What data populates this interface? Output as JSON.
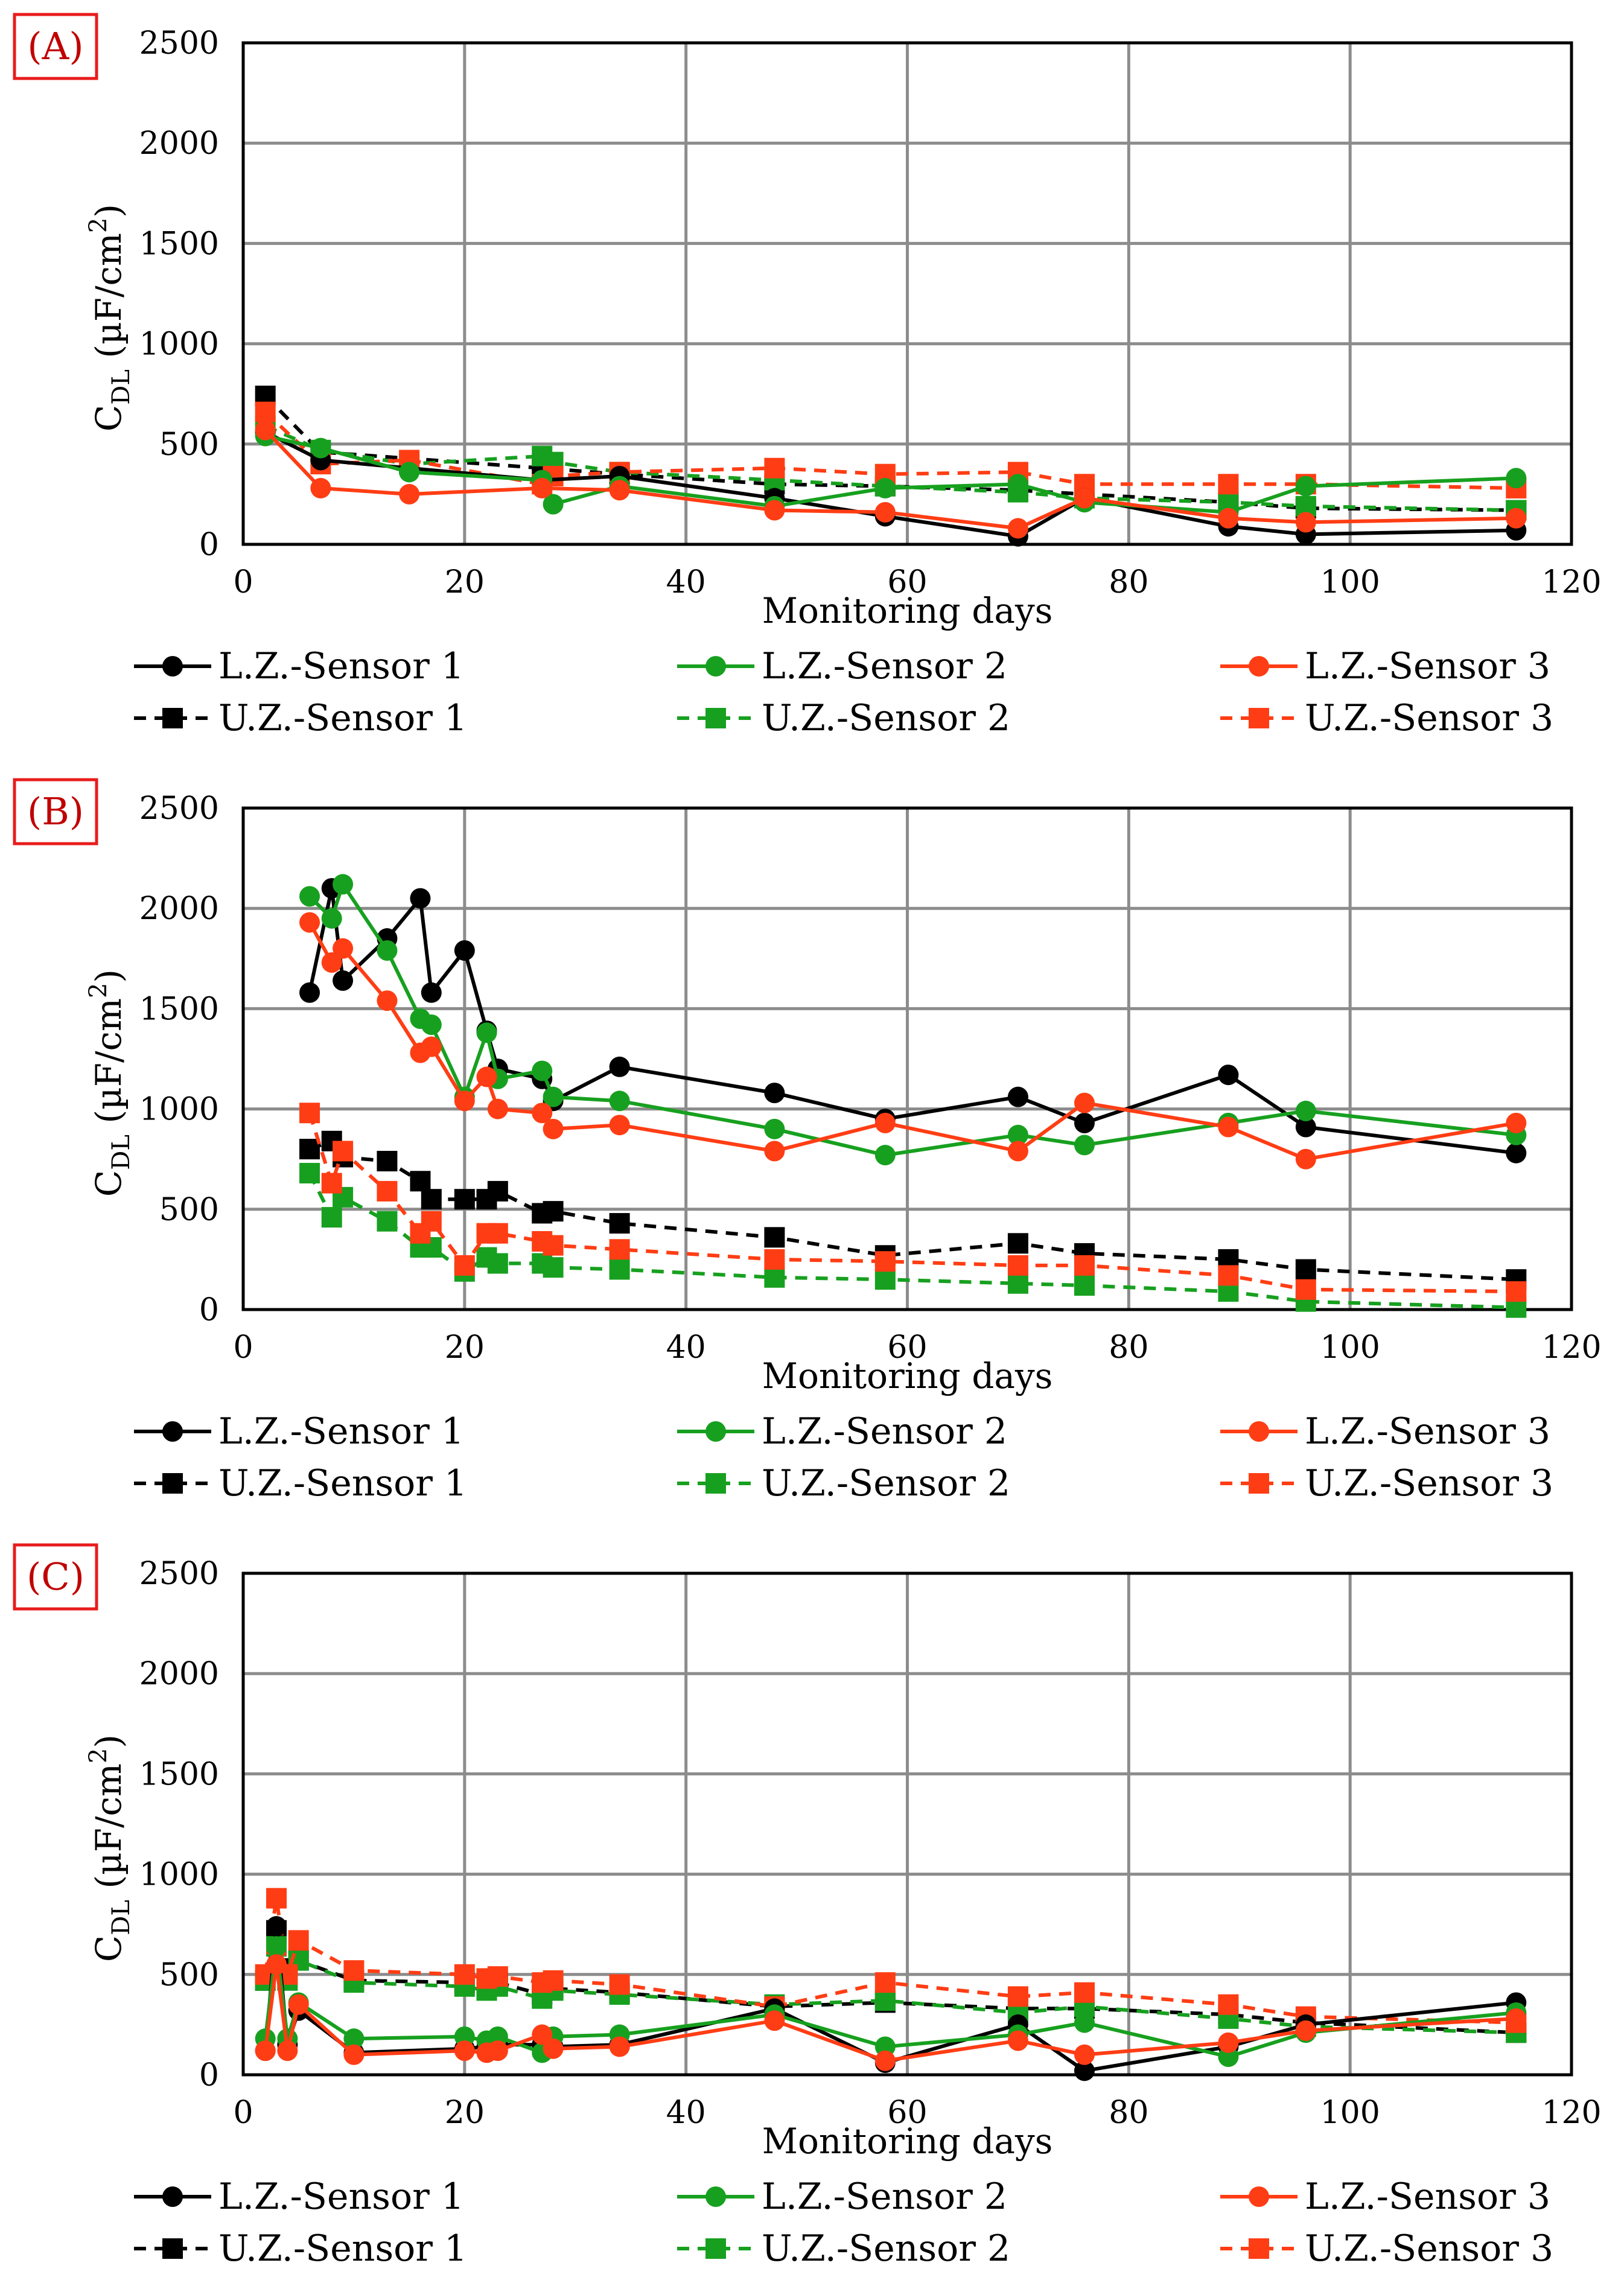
{
  "chart_data": [
    {
      "type": "line",
      "panel_label": "(A)",
      "xlabel": "Monitoring days",
      "ylabel": "CDL (µF/cm2)",
      "ylabel_parts": {
        "main": "C",
        "sub": "DL",
        "unit": " (µF/cm",
        "sup": "2",
        "close": ")"
      },
      "xlim": [
        0,
        120
      ],
      "ylim": [
        0,
        2500
      ],
      "xticks": [
        0,
        20,
        40,
        60,
        80,
        100,
        120
      ],
      "yticks": [
        0,
        500,
        1000,
        1500,
        2000,
        2500
      ],
      "grid": true,
      "legend_position": "bottom",
      "series": [
        {
          "name": "L.Z.-Sensor 1",
          "color": "#000000",
          "style": "solid",
          "marker": "circle",
          "x": [
            2,
            7,
            27,
            34,
            48,
            58,
            70,
            76,
            89,
            96,
            115
          ],
          "y": [
            560,
            420,
            320,
            340,
            230,
            140,
            40,
            230,
            90,
            50,
            70
          ]
        },
        {
          "name": "L.Z.-Sensor 2",
          "color": "#17a01f",
          "style": "solid",
          "marker": "circle",
          "x": [
            2,
            7,
            15,
            27,
            28,
            34,
            48,
            58,
            70,
            76,
            89,
            96,
            115
          ],
          "y": [
            540,
            480,
            360,
            320,
            200,
            290,
            190,
            280,
            300,
            210,
            160,
            290,
            330
          ]
        },
        {
          "name": "L.Z.-Sensor 3",
          "color": "#ff3d14",
          "style": "solid",
          "marker": "circle",
          "x": [
            2,
            7,
            15,
            27,
            34,
            48,
            58,
            70,
            76,
            89,
            96,
            115
          ],
          "y": [
            570,
            280,
            250,
            280,
            270,
            170,
            160,
            80,
            230,
            130,
            110,
            130
          ]
        },
        {
          "name": "U.Z.-Sensor 1",
          "color": "#000000",
          "style": "dashed",
          "marker": "square",
          "x": [
            2,
            7,
            27,
            34,
            48,
            58,
            70,
            76,
            89,
            96,
            115
          ],
          "y": [
            740,
            460,
            380,
            350,
            300,
            290,
            270,
            250,
            210,
            180,
            170
          ]
        },
        {
          "name": "U.Z.-Sensor 2",
          "color": "#17a01f",
          "style": "dashed",
          "marker": "square",
          "x": [
            2,
            7,
            15,
            27,
            28,
            34,
            48,
            58,
            70,
            76,
            89,
            96,
            115
          ],
          "y": [
            590,
            470,
            400,
            440,
            410,
            360,
            320,
            290,
            260,
            230,
            210,
            190,
            170
          ]
        },
        {
          "name": "U.Z.-Sensor 3",
          "color": "#ff3d14",
          "style": "dashed",
          "marker": "square",
          "x": [
            2,
            7,
            15,
            27,
            28,
            34,
            48,
            58,
            70,
            76,
            89,
            96,
            115
          ],
          "y": [
            660,
            400,
            420,
            300,
            340,
            360,
            380,
            350,
            360,
            300,
            300,
            300,
            280
          ]
        }
      ]
    },
    {
      "type": "line",
      "panel_label": "(B)",
      "xlabel": "Monitoring days",
      "ylabel": "CDL (µF/cm2)",
      "ylabel_parts": {
        "main": "C",
        "sub": "DL",
        "unit": " (µF/cm",
        "sup": "2",
        "close": ")"
      },
      "xlim": [
        0,
        120
      ],
      "ylim": [
        0,
        2500
      ],
      "xticks": [
        0,
        20,
        40,
        60,
        80,
        100,
        120
      ],
      "yticks": [
        0,
        500,
        1000,
        1500,
        2000,
        2500
      ],
      "grid": true,
      "legend_position": "bottom",
      "series": [
        {
          "name": "L.Z.-Sensor 1",
          "color": "#000000",
          "style": "solid",
          "marker": "circle",
          "x": [
            6,
            8,
            9,
            13,
            16,
            17,
            20,
            22,
            23,
            27,
            28,
            34,
            48,
            58,
            70,
            76,
            89,
            96,
            115
          ],
          "y": [
            1580,
            2100,
            1640,
            1850,
            2050,
            1580,
            1790,
            1390,
            1200,
            1150,
            1040,
            1210,
            1080,
            950,
            1060,
            930,
            1170,
            910,
            780
          ]
        },
        {
          "name": "L.Z.-Sensor 2",
          "color": "#17a01f",
          "style": "solid",
          "marker": "circle",
          "x": [
            6,
            8,
            9,
            13,
            16,
            17,
            20,
            22,
            23,
            27,
            28,
            34,
            48,
            58,
            70,
            76,
            89,
            96,
            115
          ],
          "y": [
            2060,
            1950,
            2120,
            1790,
            1450,
            1420,
            1060,
            1380,
            1150,
            1190,
            1060,
            1040,
            900,
            770,
            870,
            820,
            930,
            990,
            870
          ]
        },
        {
          "name": "L.Z.-Sensor 3",
          "color": "#ff3d14",
          "style": "solid",
          "marker": "circle",
          "x": [
            6,
            8,
            9,
            13,
            16,
            17,
            20,
            22,
            23,
            27,
            28,
            34,
            48,
            58,
            70,
            76,
            89,
            96,
            115
          ],
          "y": [
            1930,
            1730,
            1800,
            1540,
            1280,
            1310,
            1040,
            1160,
            1000,
            980,
            900,
            920,
            790,
            930,
            790,
            1030,
            910,
            750,
            930
          ]
        },
        {
          "name": "U.Z.-Sensor 1",
          "color": "#000000",
          "style": "dashed",
          "marker": "square",
          "x": [
            6,
            8,
            9,
            13,
            16,
            17,
            20,
            22,
            23,
            27,
            28,
            34,
            48,
            58,
            70,
            76,
            89,
            96,
            115
          ],
          "y": [
            800,
            840,
            760,
            740,
            640,
            550,
            550,
            550,
            590,
            480,
            490,
            430,
            360,
            270,
            330,
            280,
            250,
            200,
            150
          ]
        },
        {
          "name": "U.Z.-Sensor 2",
          "color": "#17a01f",
          "style": "dashed",
          "marker": "square",
          "x": [
            6,
            8,
            9,
            13,
            16,
            17,
            20,
            22,
            23,
            27,
            28,
            34,
            48,
            58,
            70,
            76,
            89,
            96,
            115
          ],
          "y": [
            680,
            460,
            560,
            440,
            310,
            310,
            190,
            260,
            230,
            230,
            210,
            200,
            160,
            150,
            130,
            120,
            90,
            40,
            10
          ]
        },
        {
          "name": "U.Z.-Sensor 3",
          "color": "#ff3d14",
          "style": "dashed",
          "marker": "square",
          "x": [
            6,
            8,
            9,
            13,
            16,
            17,
            20,
            22,
            23,
            27,
            28,
            34,
            48,
            58,
            70,
            76,
            89,
            96,
            115
          ],
          "y": [
            980,
            630,
            790,
            590,
            380,
            440,
            220,
            380,
            380,
            340,
            320,
            300,
            250,
            240,
            220,
            220,
            170,
            100,
            90
          ]
        }
      ]
    },
    {
      "type": "line",
      "panel_label": "(C)",
      "xlabel": "Monitoring days",
      "ylabel": "CDL (µF/cm2)",
      "ylabel_parts": {
        "main": "C",
        "sub": "DL",
        "unit": " (µF/cm",
        "sup": "2",
        "close": ")"
      },
      "xlim": [
        0,
        120
      ],
      "ylim": [
        0,
        2500
      ],
      "xticks": [
        0,
        20,
        40,
        60,
        80,
        100,
        120
      ],
      "yticks": [
        0,
        500,
        1000,
        1500,
        2000,
        2500
      ],
      "grid": true,
      "legend_position": "bottom",
      "series": [
        {
          "name": "L.Z.-Sensor 1",
          "color": "#000000",
          "style": "solid",
          "marker": "circle",
          "x": [
            2,
            3,
            4,
            5,
            10,
            20,
            22,
            23,
            27,
            28,
            34,
            48,
            58,
            70,
            76,
            89,
            96,
            115
          ],
          "y": [
            120,
            740,
            150,
            320,
            110,
            130,
            140,
            150,
            150,
            140,
            150,
            330,
            60,
            250,
            20,
            140,
            250,
            360
          ]
        },
        {
          "name": "L.Z.-Sensor 2",
          "color": "#17a01f",
          "style": "solid",
          "marker": "circle",
          "x": [
            2,
            3,
            4,
            5,
            10,
            20,
            22,
            23,
            27,
            28,
            34,
            48,
            58,
            70,
            76,
            89,
            96,
            115
          ],
          "y": [
            180,
            640,
            180,
            360,
            180,
            190,
            170,
            190,
            110,
            190,
            200,
            300,
            140,
            200,
            260,
            90,
            210,
            310
          ]
        },
        {
          "name": "L.Z.-Sensor 3",
          "color": "#ff3d14",
          "style": "solid",
          "marker": "circle",
          "x": [
            2,
            3,
            4,
            5,
            10,
            20,
            22,
            23,
            27,
            28,
            34,
            48,
            58,
            70,
            76,
            89,
            96,
            115
          ],
          "y": [
            120,
            550,
            120,
            350,
            100,
            120,
            110,
            120,
            200,
            130,
            140,
            270,
            70,
            170,
            100,
            160,
            220,
            280
          ]
        },
        {
          "name": "U.Z.-Sensor 1",
          "color": "#000000",
          "style": "dashed",
          "marker": "square",
          "x": [
            2,
            3,
            4,
            5,
            10,
            20,
            22,
            23,
            27,
            28,
            34,
            48,
            58,
            70,
            76,
            89,
            96,
            115
          ],
          "y": [
            470,
            720,
            530,
            570,
            470,
            460,
            440,
            460,
            400,
            430,
            410,
            340,
            360,
            330,
            330,
            300,
            260,
            210
          ]
        },
        {
          "name": "U.Z.-Sensor 2",
          "color": "#17a01f",
          "style": "dashed",
          "marker": "square",
          "x": [
            2,
            3,
            4,
            5,
            10,
            20,
            22,
            23,
            27,
            28,
            34,
            48,
            58,
            70,
            76,
            89,
            96,
            115
          ],
          "y": [
            470,
            640,
            470,
            570,
            460,
            440,
            420,
            440,
            380,
            420,
            400,
            350,
            370,
            310,
            340,
            280,
            240,
            210
          ]
        },
        {
          "name": "U.Z.-Sensor 3",
          "color": "#ff3d14",
          "style": "dashed",
          "marker": "square",
          "x": [
            2,
            3,
            4,
            5,
            10,
            20,
            22,
            23,
            27,
            28,
            34,
            48,
            58,
            70,
            76,
            89,
            96,
            115
          ],
          "y": [
            500,
            880,
            500,
            670,
            520,
            500,
            480,
            490,
            460,
            470,
            450,
            340,
            460,
            390,
            410,
            350,
            290,
            260
          ]
        }
      ]
    }
  ]
}
